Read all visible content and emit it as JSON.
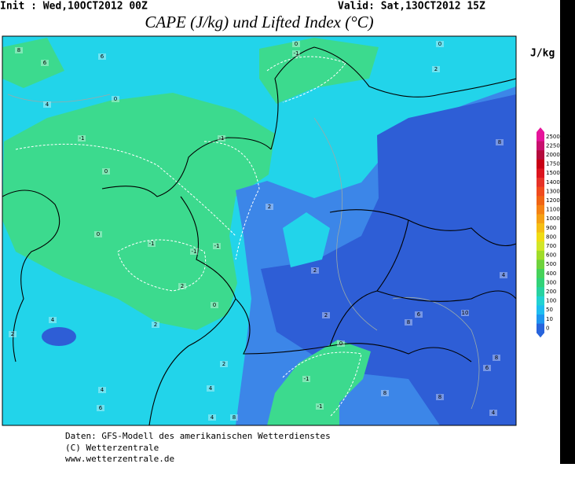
{
  "header": {
    "init": "Init : Wed,10OCT2012 00Z",
    "valid": "Valid: Sat,13OCT2012 15Z",
    "title": "CAPE (J/kg) und Lifted Index (°C)"
  },
  "legend": {
    "unit": "J/kg",
    "items": [
      {
        "label": "2500",
        "color": "#e6149a"
      },
      {
        "label": "2250",
        "color": "#c8106e"
      },
      {
        "label": "2000",
        "color": "#b40a3c"
      },
      {
        "label": "1750",
        "color": "#c80014"
      },
      {
        "label": "1500",
        "color": "#dc141e"
      },
      {
        "label": "1400",
        "color": "#e63228"
      },
      {
        "label": "1300",
        "color": "#f04b1e"
      },
      {
        "label": "1200",
        "color": "#f06414"
      },
      {
        "label": "1100",
        "color": "#f58214"
      },
      {
        "label": "1000",
        "color": "#f5a014"
      },
      {
        "label": "900",
        "color": "#f5be14"
      },
      {
        "label": "800",
        "color": "#f0dc14"
      },
      {
        "label": "700",
        "color": "#d2e628"
      },
      {
        "label": "600",
        "color": "#a0dc28"
      },
      {
        "label": "500",
        "color": "#6ed23c"
      },
      {
        "label": "400",
        "color": "#46d25a"
      },
      {
        "label": "300",
        "color": "#32d278"
      },
      {
        "label": "200",
        "color": "#28d2a0"
      },
      {
        "label": "100",
        "color": "#22d2d2"
      },
      {
        "label": "50",
        "color": "#1ebef0"
      },
      {
        "label": "10",
        "color": "#1e96f0"
      },
      {
        "label": "0",
        "color": "#2864dc"
      }
    ]
  },
  "map": {
    "contour_labels": [
      "8",
      "6",
      "6",
      "0",
      "4",
      "-1",
      "0",
      "0",
      "-1",
      "-1",
      "-1",
      "2",
      "0",
      "2",
      "4",
      "2",
      "-1",
      "0",
      "-1",
      "2",
      "0",
      "8",
      "2",
      "2",
      "2",
      "6",
      "8",
      "10",
      "4",
      "0",
      "-1",
      "-1",
      "2",
      "4",
      "8",
      "4",
      "6",
      "4",
      "8",
      "8",
      "6",
      "8",
      "4"
    ]
  },
  "footer": {
    "source": "Daten: GFS-Modell des amerikanischen Wetterdienstes",
    "copyright": "(C) Wetterzentrale",
    "url": "www.wetterzentrale.de"
  }
}
